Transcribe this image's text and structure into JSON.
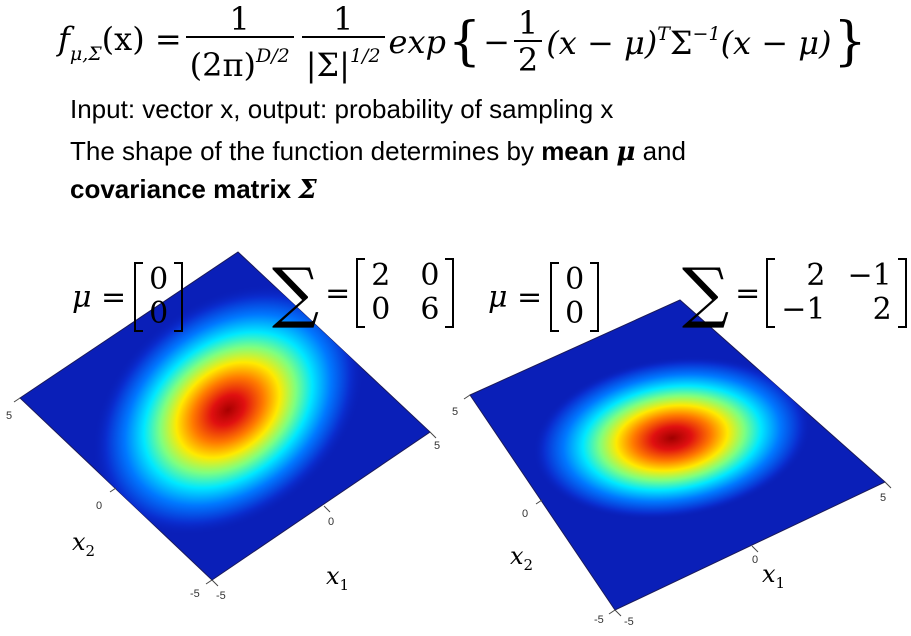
{
  "formula": {
    "lhs": "f",
    "lhs_sub": "μ,Σ",
    "arg": "(x) =",
    "frac1_num": "1",
    "frac1_den": "(2π)",
    "frac1_den_sup": "D/2",
    "frac2_num": "1",
    "frac2_den": "|Σ|",
    "frac2_den_sup": "1/2",
    "exp": "exp",
    "minus": "−",
    "half_num": "1",
    "half_den": "2",
    "body1": "(x − μ)",
    "body1_sup": "T",
    "body2": "Σ",
    "body2_sup": "−1",
    "body3": "(x − μ)"
  },
  "text": {
    "line1": "Input: vector x, output: probability of sampling x",
    "line2_pre": "The shape of the function determines by ",
    "line2_bold": "mean ",
    "line2_mu": "μ",
    "line2_post": " and",
    "line3_bold": "covariance matrix ",
    "line3_sigma": "Σ"
  },
  "plot_left": {
    "mu_label": "μ =",
    "mu_values": [
      "0",
      "0"
    ],
    "sigma_symbol": "∑",
    "equals": "=",
    "sigma_matrix": [
      "2",
      "0",
      "0",
      "6"
    ],
    "ticks": {
      "y_top": "5",
      "y_mid": "0",
      "y_low": "-5",
      "x_low": "-5",
      "x_mid": "0",
      "x_top": "5"
    },
    "x2_label": "x",
    "x2_sub": "2",
    "x1_label": "x",
    "x1_sub": "1"
  },
  "plot_right": {
    "mu_label": "μ =",
    "mu_values": [
      "0",
      "0"
    ],
    "sigma_symbol": "∑",
    "equals": "=",
    "sigma_matrix": [
      "2",
      "−1",
      "−1",
      "2"
    ],
    "ticks": {
      "y_top": "5",
      "y_mid": "0",
      "y_low": "-5",
      "x_low": "-5",
      "x_mid": "0",
      "x_top": "5"
    },
    "x2_label": "x",
    "x2_sub": "2",
    "x1_label": "x",
    "x1_sub": "1"
  },
  "colors": {
    "surface_base": "#0a1fb8",
    "peak": "#b00000"
  }
}
